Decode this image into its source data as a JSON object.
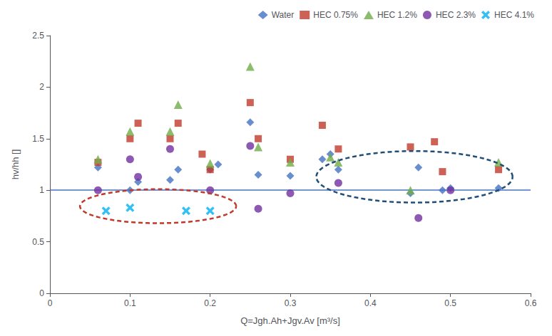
{
  "chart_data": {
    "type": "scatter",
    "xlabel": "Q=Jgh.Ah+Jgv.Av [m³/s]",
    "ylabel": "hv/hh []",
    "xlim": [
      0,
      0.6
    ],
    "ylim": [
      0,
      2.5
    ],
    "xticks": [
      0,
      0.1,
      0.2,
      0.3,
      0.4,
      0.5,
      0.6
    ],
    "yticks": [
      0,
      0.5,
      1.0,
      1.5,
      2.0,
      2.5
    ],
    "grid": false,
    "legend": "upper right",
    "series": [
      {
        "name": "Water",
        "color": "#4472C4",
        "marker": "diamond",
        "x": [
          0.06,
          0.1,
          0.11,
          0.15,
          0.16,
          0.2,
          0.21,
          0.25,
          0.26,
          0.3,
          0.34,
          0.35,
          0.36,
          0.45,
          0.46,
          0.49,
          0.5,
          0.56
        ],
        "values": [
          1.22,
          1.0,
          1.08,
          1.1,
          1.2,
          1.2,
          1.25,
          1.66,
          1.15,
          1.14,
          1.3,
          1.35,
          1.2,
          0.97,
          1.22,
          1.0,
          1.02,
          1.02
        ]
      },
      {
        "name": "HEC 0.75%",
        "color": "#C0392B",
        "marker": "square",
        "x": [
          0.06,
          0.1,
          0.11,
          0.15,
          0.16,
          0.19,
          0.2,
          0.25,
          0.26,
          0.3,
          0.34,
          0.36,
          0.45,
          0.48,
          0.49,
          0.56
        ],
        "values": [
          1.27,
          1.5,
          1.65,
          1.5,
          1.65,
          1.35,
          1.2,
          1.85,
          1.5,
          1.3,
          1.63,
          1.4,
          1.42,
          1.47,
          1.18,
          1.2
        ]
      },
      {
        "name": "HEC 1.2%",
        "color": "#70AD47",
        "marker": "triangle",
        "x": [
          0.06,
          0.1,
          0.15,
          0.16,
          0.2,
          0.25,
          0.26,
          0.3,
          0.35,
          0.36,
          0.45,
          0.56
        ],
        "values": [
          1.3,
          1.57,
          1.57,
          1.83,
          1.26,
          2.2,
          1.42,
          1.27,
          1.32,
          1.27,
          1.0,
          1.27
        ]
      },
      {
        "name": "HEC 2.3%",
        "color": "#7030A0",
        "marker": "circle",
        "x": [
          0.06,
          0.1,
          0.11,
          0.15,
          0.2,
          0.25,
          0.26,
          0.3,
          0.36,
          0.46,
          0.5
        ],
        "values": [
          1.0,
          1.3,
          1.13,
          1.4,
          1.0,
          1.43,
          0.82,
          0.97,
          1.07,
          0.73,
          1.0
        ]
      },
      {
        "name": "HEC 4.1%",
        "color": "#00B0F0",
        "marker": "x",
        "x": [
          0.07,
          0.1,
          0.17,
          0.2
        ],
        "values": [
          0.8,
          0.83,
          0.8,
          0.8
        ]
      }
    ],
    "hline": {
      "y": 1.0,
      "color": "#4472C4"
    },
    "ellipses": [
      {
        "cx": 0.135,
        "cy": 0.845,
        "width": 0.195,
        "height": 0.33,
        "color": "#C0392B",
        "line_style": "dashed"
      },
      {
        "cx": 0.455,
        "cy": 1.13,
        "width": 0.245,
        "height": 0.5,
        "color": "#1F4E79",
        "line_style": "dashed"
      }
    ]
  }
}
